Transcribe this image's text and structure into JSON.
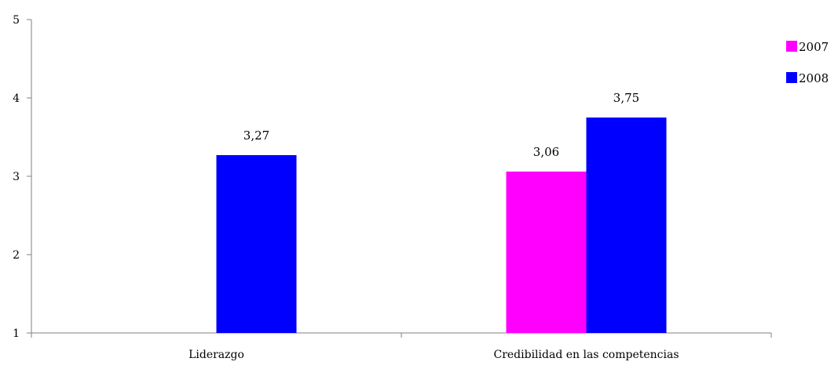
{
  "chart_data": {
    "type": "bar",
    "title": "",
    "xlabel": "",
    "ylabel": "",
    "categories": [
      "Liderazgo",
      "Credibilidad en las competencias"
    ],
    "ylim": [
      1,
      5
    ],
    "yticks": [
      "1",
      "2",
      "3",
      "4",
      "5"
    ],
    "grid": false,
    "legend_position": "right",
    "series": [
      {
        "name": "2007",
        "color": "#FF00FF",
        "values": [
          null,
          3.06
        ],
        "labels": [
          "",
          "3,06"
        ]
      },
      {
        "name": "2008",
        "color": "#0000FF",
        "values": [
          3.27,
          3.75
        ],
        "labels": [
          "3,27",
          "3,75"
        ]
      }
    ]
  }
}
